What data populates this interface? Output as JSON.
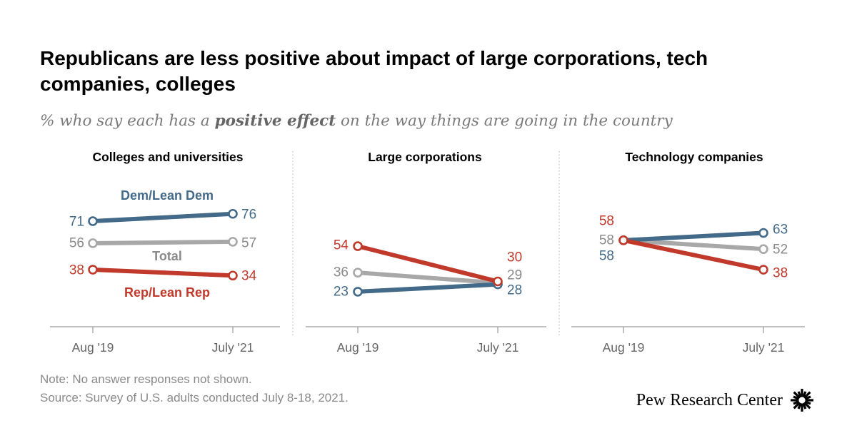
{
  "title": "Republicans are less positive about impact of large corporations, tech companies, colleges",
  "subtitle": {
    "before": "% who say each has a ",
    "emphasis": "positive effect",
    "after": " on the way things are going in the country"
  },
  "colors": {
    "dem": "#436a88",
    "total": "#a8a8a8",
    "rep": "#c0392b"
  },
  "chart_data": [
    {
      "type": "line",
      "title": "Colleges and universities",
      "x": [
        "Aug '19",
        "July '21"
      ],
      "series": [
        {
          "name": "Dem/Lean Dem",
          "key": "dem",
          "values": [
            71,
            76
          ]
        },
        {
          "name": "Total",
          "key": "total",
          "values": [
            56,
            57
          ]
        },
        {
          "name": "Rep/Lean Rep",
          "key": "rep",
          "values": [
            38,
            34
          ]
        }
      ]
    },
    {
      "type": "line",
      "title": "Large corporations",
      "x": [
        "Aug '19",
        "July '21"
      ],
      "series": [
        {
          "key": "dem",
          "values": [
            23,
            28
          ]
        },
        {
          "key": "total",
          "values": [
            36,
            29
          ]
        },
        {
          "key": "rep",
          "values": [
            54,
            30
          ]
        }
      ]
    },
    {
      "type": "line",
      "title": "Technology companies",
      "x": [
        "Aug '19",
        "July '21"
      ],
      "series": [
        {
          "key": "dem",
          "values": [
            58,
            63
          ]
        },
        {
          "key": "total",
          "values": [
            58,
            52
          ]
        },
        {
          "key": "rep",
          "values": [
            58,
            38
          ]
        }
      ]
    }
  ],
  "note": "Note: No answer responses not shown.",
  "source": "Source: Survey of U.S. adults conducted July 8-18, 2021.",
  "logo_text": "Pew Research Center"
}
